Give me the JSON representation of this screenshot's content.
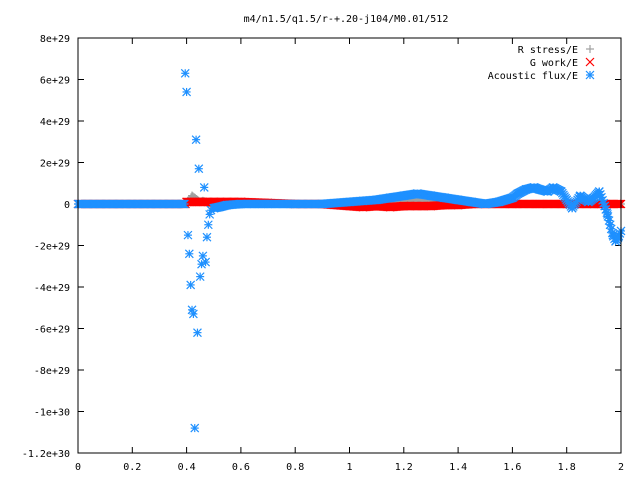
{
  "chart_data": {
    "type": "scatter",
    "title": "m4/n1.5/q1.5/r-+.20-j104/M0.01/512",
    "xlabel": "",
    "ylabel": "",
    "xlim": [
      0,
      2
    ],
    "ylim": [
      -1.2e+30,
      8e+29
    ],
    "grid": false,
    "legend_position": "top-right",
    "x_ticks": [
      {
        "value": 0,
        "label": "0"
      },
      {
        "value": 0.2,
        "label": "0.2"
      },
      {
        "value": 0.4,
        "label": "0.4"
      },
      {
        "value": 0.6,
        "label": "0.6"
      },
      {
        "value": 0.8,
        "label": "0.8"
      },
      {
        "value": 1.0,
        "label": "1"
      },
      {
        "value": 1.2,
        "label": "1.2"
      },
      {
        "value": 1.4,
        "label": "1.4"
      },
      {
        "value": 1.6,
        "label": "1.6"
      },
      {
        "value": 1.8,
        "label": "1.8"
      },
      {
        "value": 2.0,
        "label": "2"
      }
    ],
    "y_ticks": [
      {
        "value": 8e+29,
        "label": "8e+29"
      },
      {
        "value": 6e+29,
        "label": "6e+29"
      },
      {
        "value": 4e+29,
        "label": "4e+29"
      },
      {
        "value": 2e+29,
        "label": "2e+29"
      },
      {
        "value": 0,
        "label": "0"
      },
      {
        "value": -2e+29,
        "label": "-2e+29"
      },
      {
        "value": -4e+29,
        "label": "-4e+29"
      },
      {
        "value": -6e+29,
        "label": "-6e+29"
      },
      {
        "value": -8e+29,
        "label": "-8e+29"
      },
      {
        "value": -1e+30,
        "label": "-1e+30"
      },
      {
        "value": -1.2e+30,
        "label": "-1.2e+30"
      }
    ],
    "series": [
      {
        "name": "R stress/E",
        "marker": "plus",
        "color": "#a0a0a0",
        "x": [
          0.4,
          0.41,
          0.42,
          0.43,
          0.44,
          0.45,
          0.46,
          0.47,
          0.48,
          0.5,
          0.55,
          0.6,
          0.7,
          0.8,
          0.9,
          1.0,
          1.1,
          1.15,
          1.2,
          1.25,
          1.3,
          1.35,
          1.4,
          1.5,
          1.6,
          1.7,
          1.8,
          1.9,
          1.95,
          2.0
        ],
        "y": [
          0,
          2e+28,
          4e+28,
          3e+28,
          2e+28,
          1e+28,
          1.5e+28,
          1e+28,
          5e+27,
          0,
          0,
          0,
          0,
          0,
          0,
          0,
          5e+27,
          1e+28,
          1.5e+28,
          2e+28,
          1.5e+28,
          1e+28,
          5e+27,
          0,
          0,
          0,
          0,
          0,
          0,
          0
        ]
      },
      {
        "name": "G work/E",
        "marker": "cross",
        "color": "#ff0000",
        "x": [
          0.4,
          0.42,
          0.44,
          0.46,
          0.48,
          0.5,
          0.55,
          0.6,
          0.7,
          0.8,
          0.9,
          1.0,
          1.05,
          1.1,
          1.15,
          1.2,
          1.25,
          1.3,
          1.35,
          1.4,
          1.45,
          1.5,
          1.6,
          1.7,
          1.8,
          1.9,
          2.0
        ],
        "y": [
          1e+28,
          1e+28,
          1e+28,
          1e+28,
          1e+28,
          1e+28,
          1e+28,
          1e+28,
          5e+27,
          0,
          0,
          -1e+28,
          -1.5e+28,
          -1e+28,
          -1.5e+28,
          -1e+28,
          -1e+28,
          -1e+28,
          -5e+27,
          -5e+27,
          0,
          0,
          0,
          0,
          0,
          0,
          0
        ]
      },
      {
        "name": "Acoustic flux/E",
        "marker": "star",
        "color": "#1e90ff",
        "x": [
          0.395,
          0.4,
          0.405,
          0.41,
          0.415,
          0.42,
          0.425,
          0.43,
          0.435,
          0.44,
          0.445,
          0.45,
          0.455,
          0.46,
          0.465,
          0.47,
          0.475,
          0.48,
          0.485,
          0.49,
          0.5,
          0.52,
          0.55,
          0.6,
          0.65,
          0.7,
          0.8,
          0.9,
          1.0,
          1.05,
          1.1,
          1.15,
          1.2,
          1.25,
          1.3,
          1.35,
          1.4,
          1.45,
          1.5,
          1.55,
          1.6,
          1.62,
          1.65,
          1.68,
          1.7,
          1.73,
          1.75,
          1.78,
          1.8,
          1.82,
          1.85,
          1.88,
          1.9,
          1.92,
          1.94,
          1.95,
          1.96,
          1.97,
          1.98,
          1.99,
          2.0
        ],
        "y": [
          6.3e+29,
          5.4e+29,
          -1.5e+29,
          -2.4e+29,
          -3.9e+29,
          -5.1e+29,
          -5.3e+29,
          -1.08e+30,
          3.1e+29,
          -6.2e+29,
          1.7e+29,
          -3.5e+29,
          -2.9e+29,
          -2.5e+29,
          8e+28,
          -2.8e+29,
          -1.6e+29,
          -1e+29,
          -5e+28,
          -3e+28,
          -2e+28,
          -1.5e+28,
          -5e+27,
          0,
          0,
          0,
          0,
          0,
          1e+28,
          1.5e+28,
          2e+28,
          3e+28,
          4e+28,
          5e+28,
          4e+28,
          3e+28,
          2e+28,
          1e+28,
          0,
          1e+28,
          3e+28,
          5e+28,
          7e+28,
          8e+28,
          7e+28,
          6e+28,
          8e+28,
          6e+28,
          2e+28,
          -2e+28,
          4e+28,
          1e+28,
          3e+28,
          6e+28,
          -1e+28,
          -5e+28,
          -1e+29,
          -1.5e+29,
          -1.8e+29,
          -1.6e+29,
          -1.3e+29
        ]
      }
    ]
  }
}
